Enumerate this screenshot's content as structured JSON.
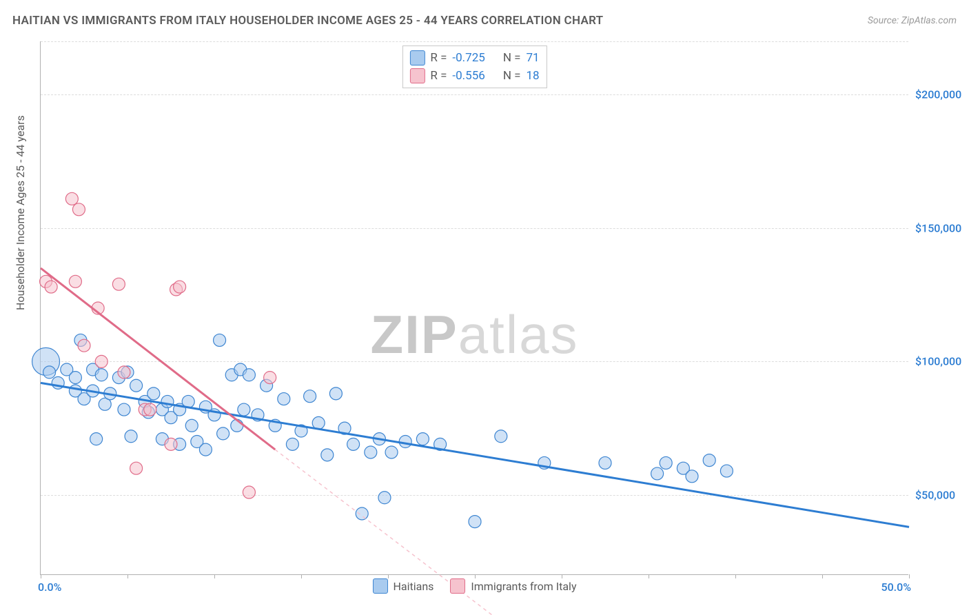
{
  "header": {
    "title": "HAITIAN VS IMMIGRANTS FROM ITALY HOUSEHOLDER INCOME AGES 25 - 44 YEARS CORRELATION CHART",
    "source": "Source: ZipAtlas.com"
  },
  "watermark": {
    "bold": "ZIP",
    "light": "atlas"
  },
  "chart": {
    "type": "scatter",
    "background_color": "#ffffff",
    "grid_color": "#dcdcdc",
    "axis_color": "#b0b0b0",
    "tick_label_color": "#2d7dd2",
    "label_color": "#5a5a5a",
    "title_fontsize": 17,
    "tick_fontsize": 16,
    "label_fontsize": 16,
    "ylabel": "Householder Income Ages 25 - 44 years",
    "xlim": [
      0.0,
      50.0
    ],
    "ylim": [
      20000,
      220000
    ],
    "y_ticks": [
      50000,
      100000,
      150000,
      200000
    ],
    "y_tick_labels": [
      "$50,000",
      "$100,000",
      "$150,000",
      "$200,000"
    ],
    "x_tick_positions": [
      0,
      5,
      10,
      15,
      20,
      25,
      30,
      35,
      40,
      45,
      50
    ],
    "x_min_label": "0.0%",
    "x_max_label": "50.0%",
    "marker_radius": 9,
    "marker_stroke_width": 1.2,
    "line_width": 3,
    "correlation_legend": [
      {
        "r_label": "R =",
        "r_value": "-0.725",
        "n_label": "N =",
        "n_value": "71",
        "swatch_fill": "#a9cbef",
        "swatch_stroke": "#3d85d1"
      },
      {
        "r_label": "R =",
        "r_value": "-0.556",
        "n_label": "N =",
        "n_value": "18",
        "swatch_fill": "#f6c3ce",
        "swatch_stroke": "#e06b88"
      }
    ],
    "series_legend": [
      {
        "label": "Haitians",
        "swatch_fill": "#a9cbef",
        "swatch_stroke": "#3d85d1"
      },
      {
        "label": "Immigrants from Italy",
        "swatch_fill": "#f6c3ce",
        "swatch_stroke": "#e06b88"
      }
    ],
    "series": [
      {
        "name": "Haitians",
        "color_fill": "#a9cbef",
        "color_stroke": "#3d85d1",
        "fill_opacity": 0.55,
        "trend_line": {
          "x1": 0,
          "y1": 92000,
          "x2": 50,
          "y2": 38000,
          "color": "#2d7dd2",
          "dash": "none"
        },
        "points": [
          {
            "x": 0.3,
            "y": 100000,
            "r": 20
          },
          {
            "x": 0.5,
            "y": 96000,
            "r": 9
          },
          {
            "x": 1.0,
            "y": 92000,
            "r": 9
          },
          {
            "x": 1.5,
            "y": 97000,
            "r": 9
          },
          {
            "x": 2.0,
            "y": 89000,
            "r": 9
          },
          {
            "x": 2.0,
            "y": 94000,
            "r": 9
          },
          {
            "x": 2.3,
            "y": 108000,
            "r": 9
          },
          {
            "x": 2.5,
            "y": 86000,
            "r": 9
          },
          {
            "x": 3.0,
            "y": 97000,
            "r": 9
          },
          {
            "x": 3.0,
            "y": 89000,
            "r": 9
          },
          {
            "x": 3.2,
            "y": 71000,
            "r": 9
          },
          {
            "x": 3.5,
            "y": 95000,
            "r": 9
          },
          {
            "x": 3.7,
            "y": 84000,
            "r": 9
          },
          {
            "x": 4.0,
            "y": 88000,
            "r": 9
          },
          {
            "x": 4.5,
            "y": 94000,
            "r": 9
          },
          {
            "x": 4.8,
            "y": 82000,
            "r": 9
          },
          {
            "x": 5.0,
            "y": 96000,
            "r": 9
          },
          {
            "x": 5.2,
            "y": 72000,
            "r": 9
          },
          {
            "x": 5.5,
            "y": 91000,
            "r": 9
          },
          {
            "x": 6.0,
            "y": 85000,
            "r": 9
          },
          {
            "x": 6.2,
            "y": 81000,
            "r": 9
          },
          {
            "x": 6.5,
            "y": 88000,
            "r": 9
          },
          {
            "x": 7.0,
            "y": 82000,
            "r": 9
          },
          {
            "x": 7.0,
            "y": 71000,
            "r": 9
          },
          {
            "x": 7.3,
            "y": 85000,
            "r": 9
          },
          {
            "x": 7.5,
            "y": 79000,
            "r": 9
          },
          {
            "x": 8.0,
            "y": 82000,
            "r": 9
          },
          {
            "x": 8.0,
            "y": 69000,
            "r": 9
          },
          {
            "x": 8.5,
            "y": 85000,
            "r": 9
          },
          {
            "x": 8.7,
            "y": 76000,
            "r": 9
          },
          {
            "x": 9.0,
            "y": 70000,
            "r": 9
          },
          {
            "x": 9.5,
            "y": 83000,
            "r": 9
          },
          {
            "x": 9.5,
            "y": 67000,
            "r": 9
          },
          {
            "x": 10.0,
            "y": 80000,
            "r": 9
          },
          {
            "x": 10.3,
            "y": 108000,
            "r": 9
          },
          {
            "x": 10.5,
            "y": 73000,
            "r": 9
          },
          {
            "x": 11.0,
            "y": 95000,
            "r": 9
          },
          {
            "x": 11.3,
            "y": 76000,
            "r": 9
          },
          {
            "x": 11.5,
            "y": 97000,
            "r": 9
          },
          {
            "x": 11.7,
            "y": 82000,
            "r": 9
          },
          {
            "x": 12.0,
            "y": 95000,
            "r": 9
          },
          {
            "x": 12.5,
            "y": 80000,
            "r": 9
          },
          {
            "x": 13.0,
            "y": 91000,
            "r": 9
          },
          {
            "x": 13.5,
            "y": 76000,
            "r": 9
          },
          {
            "x": 14.0,
            "y": 86000,
            "r": 9
          },
          {
            "x": 14.5,
            "y": 69000,
            "r": 9
          },
          {
            "x": 15.0,
            "y": 74000,
            "r": 9
          },
          {
            "x": 15.5,
            "y": 87000,
            "r": 9
          },
          {
            "x": 16.0,
            "y": 77000,
            "r": 9
          },
          {
            "x": 16.5,
            "y": 65000,
            "r": 9
          },
          {
            "x": 17.0,
            "y": 88000,
            "r": 9
          },
          {
            "x": 17.5,
            "y": 75000,
            "r": 9
          },
          {
            "x": 18.0,
            "y": 69000,
            "r": 9
          },
          {
            "x": 18.5,
            "y": 43000,
            "r": 9
          },
          {
            "x": 19.0,
            "y": 66000,
            "r": 9
          },
          {
            "x": 19.5,
            "y": 71000,
            "r": 9
          },
          {
            "x": 19.8,
            "y": 49000,
            "r": 9
          },
          {
            "x": 20.2,
            "y": 66000,
            "r": 9
          },
          {
            "x": 21.0,
            "y": 70000,
            "r": 9
          },
          {
            "x": 22.0,
            "y": 71000,
            "r": 9
          },
          {
            "x": 23.0,
            "y": 69000,
            "r": 9
          },
          {
            "x": 25.0,
            "y": 40000,
            "r": 9
          },
          {
            "x": 26.5,
            "y": 72000,
            "r": 9
          },
          {
            "x": 29.0,
            "y": 62000,
            "r": 9
          },
          {
            "x": 32.5,
            "y": 62000,
            "r": 9
          },
          {
            "x": 35.5,
            "y": 58000,
            "r": 9
          },
          {
            "x": 36.0,
            "y": 62000,
            "r": 9
          },
          {
            "x": 37.0,
            "y": 60000,
            "r": 9
          },
          {
            "x": 37.5,
            "y": 57000,
            "r": 9
          },
          {
            "x": 38.5,
            "y": 63000,
            "r": 9
          },
          {
            "x": 39.5,
            "y": 59000,
            "r": 9
          }
        ]
      },
      {
        "name": "Immigrants from Italy",
        "color_fill": "#f6c3ce",
        "color_stroke": "#e06b88",
        "fill_opacity": 0.55,
        "trend_line": {
          "x1": 0,
          "y1": 135000,
          "x2": 13.5,
          "y2": 67000,
          "color": "#e06b88",
          "dash": "none"
        },
        "trend_line_ext": {
          "x1": 13.5,
          "y1": 67000,
          "x2": 27,
          "y2": 0,
          "color": "#f6c3ce",
          "dash": "5,5"
        },
        "points": [
          {
            "x": 0.3,
            "y": 130000,
            "r": 9
          },
          {
            "x": 0.6,
            "y": 128000,
            "r": 9
          },
          {
            "x": 1.8,
            "y": 161000,
            "r": 9
          },
          {
            "x": 2.2,
            "y": 157000,
            "r": 9
          },
          {
            "x": 2.0,
            "y": 130000,
            "r": 9
          },
          {
            "x": 2.5,
            "y": 106000,
            "r": 9
          },
          {
            "x": 3.3,
            "y": 120000,
            "r": 9
          },
          {
            "x": 3.5,
            "y": 100000,
            "r": 9
          },
          {
            "x": 4.5,
            "y": 129000,
            "r": 9
          },
          {
            "x": 4.8,
            "y": 96000,
            "r": 9
          },
          {
            "x": 5.5,
            "y": 60000,
            "r": 9
          },
          {
            "x": 6.0,
            "y": 82000,
            "r": 9
          },
          {
            "x": 6.3,
            "y": 82000,
            "r": 9
          },
          {
            "x": 7.5,
            "y": 69000,
            "r": 9
          },
          {
            "x": 7.8,
            "y": 127000,
            "r": 9
          },
          {
            "x": 8.0,
            "y": 128000,
            "r": 9
          },
          {
            "x": 12.0,
            "y": 51000,
            "r": 9
          },
          {
            "x": 13.2,
            "y": 94000,
            "r": 9
          }
        ]
      }
    ]
  }
}
